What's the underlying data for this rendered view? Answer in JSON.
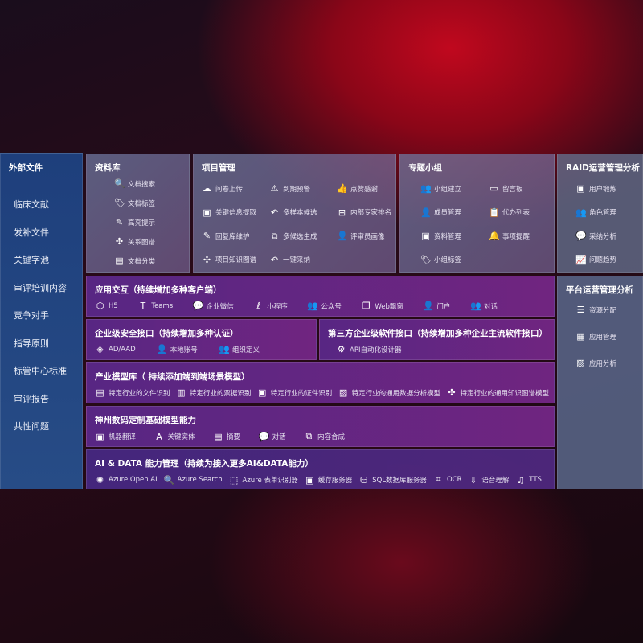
{
  "sidebar": {
    "title": "外部文件",
    "items": [
      "临床文献",
      "发补文件",
      "关键字池",
      "审评培训内容",
      "竞争对手",
      "指导原则",
      "标管中心标准",
      "审评报告",
      "共性问题"
    ]
  },
  "library": {
    "title": "资料库",
    "items": [
      {
        "icon": "doc-search-icon",
        "g": "🔍",
        "label": "文档搜索"
      },
      {
        "icon": "tag-icon",
        "g": "🏷",
        "label": "文档标签"
      },
      {
        "icon": "pen-icon",
        "g": "✎",
        "label": "高亮提示"
      },
      {
        "icon": "graph-icon",
        "g": "✣",
        "label": "关系图谱"
      },
      {
        "icon": "doc-icon",
        "g": "▤",
        "label": "文档分类"
      }
    ]
  },
  "project": {
    "title": "项目管理",
    "items": [
      {
        "icon": "cloud-upload-icon",
        "g": "☁",
        "label": "问卷上传"
      },
      {
        "icon": "alarm-icon",
        "g": "⚠",
        "label": "到期预警"
      },
      {
        "icon": "thumbs-up-icon",
        "g": "👍",
        "label": "点赞感谢"
      },
      {
        "icon": "doc-extract-icon",
        "g": "▣",
        "label": "关键信息提取"
      },
      {
        "icon": "reply-icon",
        "g": "↶",
        "label": "多样本候选"
      },
      {
        "icon": "ranking-icon",
        "g": "⊞",
        "label": "内部专家排名"
      },
      {
        "icon": "pen-icon",
        "g": "✎",
        "label": "回复库维护"
      },
      {
        "icon": "puzzle-icon",
        "g": "⧉",
        "label": "多候选生成"
      },
      {
        "icon": "user-icon",
        "g": "👤",
        "label": "评审员画像"
      },
      {
        "icon": "graph-icon",
        "g": "✣",
        "label": "项目知识图谱"
      },
      {
        "icon": "reply-icon",
        "g": "↶",
        "label": "一键采纳"
      }
    ]
  },
  "group": {
    "title": "专题小组",
    "items": [
      {
        "icon": "users-icon",
        "g": "👥",
        "label": "小组建立"
      },
      {
        "icon": "bbs-icon",
        "g": "▭",
        "label": "留言板"
      },
      {
        "icon": "user-add-icon",
        "g": "👤",
        "label": "成员管理"
      },
      {
        "icon": "clipboard-icon",
        "g": "📋",
        "label": "代办列表"
      },
      {
        "icon": "folder-icon",
        "g": "▣",
        "label": "资料管理"
      },
      {
        "icon": "bell-icon",
        "g": "🔔",
        "label": "事项提醒"
      },
      {
        "icon": "tag-icon",
        "g": "🏷",
        "label": "小组标签"
      }
    ]
  },
  "raid": {
    "title": "RAID运营管理分析",
    "items": [
      {
        "icon": "id-card-icon",
        "g": "▣",
        "label": "用户锻炼"
      },
      {
        "icon": "users-icon",
        "g": "👥",
        "label": "角色管理"
      },
      {
        "icon": "qa-icon",
        "g": "💬",
        "label": "采纳分析"
      },
      {
        "icon": "trend-icon",
        "g": "📈",
        "label": "问题趋势"
      }
    ]
  },
  "platform": {
    "title": "平台运营管理分析",
    "items": [
      {
        "icon": "list-icon",
        "g": "☰",
        "label": "资源分配"
      },
      {
        "icon": "apps-icon",
        "g": "▦",
        "label": "应用管理"
      },
      {
        "icon": "chart-icon",
        "g": "▨",
        "label": "应用分析"
      }
    ]
  },
  "interaction": {
    "title": "应用交互（持续增加多种客户端）",
    "items": [
      {
        "icon": "html5-icon",
        "g": "⬡",
        "label": "H5"
      },
      {
        "icon": "teams-icon",
        "g": "T",
        "label": "Teams"
      },
      {
        "icon": "wechat-icon",
        "g": "💬",
        "label": "企业微信"
      },
      {
        "icon": "mini-program-icon",
        "g": "ℓ",
        "label": "小程序"
      },
      {
        "icon": "users-icon",
        "g": "👥",
        "label": "公众号"
      },
      {
        "icon": "window-icon",
        "g": "❐",
        "label": "Web飘窗"
      },
      {
        "icon": "portal-icon",
        "g": "👤",
        "label": "门户"
      },
      {
        "icon": "chat-users-icon",
        "g": "👥",
        "label": "对话"
      }
    ]
  },
  "security": {
    "title": "企业级安全接口（持续增加多种认证）",
    "items": [
      {
        "icon": "ad-icon",
        "g": "◈",
        "label": "AD/AAD"
      },
      {
        "icon": "account-icon",
        "g": "👤",
        "label": "本地账号"
      },
      {
        "icon": "org-icon",
        "g": "👥",
        "label": "组织定义"
      }
    ]
  },
  "third_party": {
    "title": "第三方企业级软件接口（持续增加多种企业主流软件接口）",
    "items": [
      {
        "icon": "gear-icon",
        "g": "⚙",
        "label": "API自动化设计器"
      }
    ]
  },
  "industry": {
    "title": "产业模型库（ 持续添加端到端场景模型）",
    "items": [
      {
        "icon": "file-icon",
        "g": "▤",
        "label": "特定行业的文件识别"
      },
      {
        "icon": "receipt-icon",
        "g": "▥",
        "label": "特定行业的票据识别"
      },
      {
        "icon": "id-card-icon",
        "g": "▣",
        "label": "特定行业的证件识别"
      },
      {
        "icon": "image-chart-icon",
        "g": "▧",
        "label": "特定行业的通用数据分析模型"
      },
      {
        "icon": "graph-icon",
        "g": "✣",
        "label": "特定行业的通用知识图谱模型"
      }
    ]
  },
  "base_model": {
    "title": "神州数码定制基础模型能力",
    "items": [
      {
        "icon": "translate-icon",
        "g": "▣",
        "label": "机器翻译"
      },
      {
        "icon": "entity-icon",
        "g": "A",
        "label": "关键实体"
      },
      {
        "icon": "summary-icon",
        "g": "▤",
        "label": "摘要"
      },
      {
        "icon": "chat-icon",
        "g": "💬",
        "label": "对话"
      },
      {
        "icon": "compose-icon",
        "g": "⧉",
        "label": "内容合成"
      }
    ]
  },
  "ai_data": {
    "title": "AI & DATA 能力管理（持续为接入更多AI&DATA能力）",
    "items": [
      {
        "icon": "openai-icon",
        "g": "✺",
        "label": "Azure Open AI"
      },
      {
        "icon": "search-doc-icon",
        "g": "🔍",
        "label": "Azure Search"
      },
      {
        "icon": "form-icon",
        "g": "⬚",
        "label": "Azure 表单识别器"
      },
      {
        "icon": "cache-icon",
        "g": "▣",
        "label": "缓存服务器"
      },
      {
        "icon": "sql-icon",
        "g": "⛁",
        "label": "SQL数据库服务器"
      },
      {
        "icon": "ocr-icon",
        "g": "⌗",
        "label": "OCR"
      },
      {
        "icon": "speech-icon",
        "g": "⇩",
        "label": "语音理解"
      },
      {
        "icon": "tts-icon",
        "g": "♫",
        "label": "TTS"
      }
    ]
  }
}
